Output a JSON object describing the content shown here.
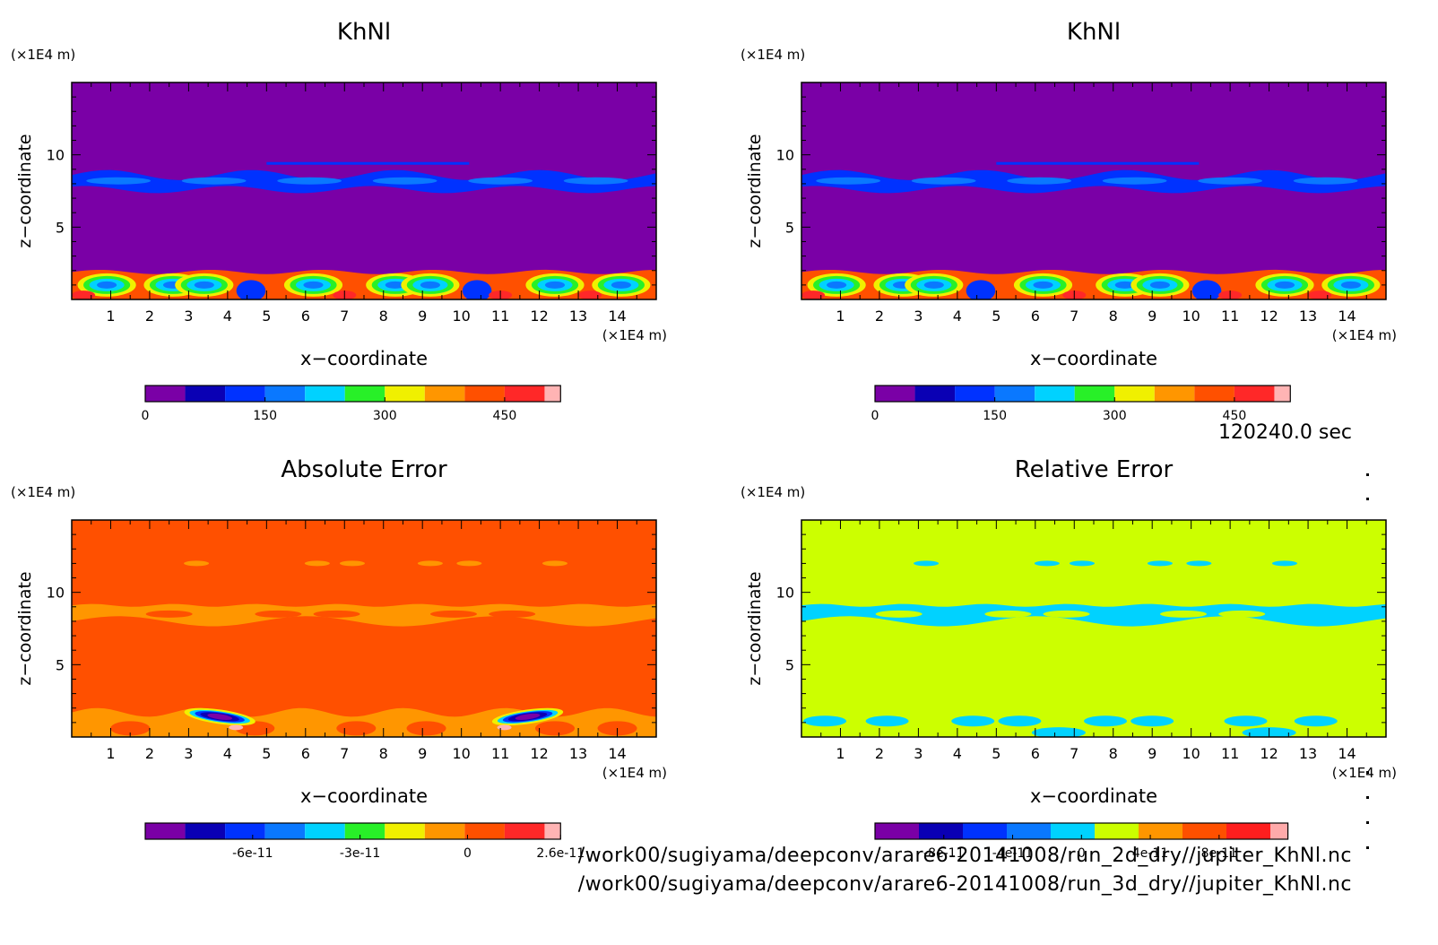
{
  "timestamp": "120240.0 sec",
  "files": [
    "/work00/sugiyama/deepconv/arare6-20141008/run_2d_dry//jupiter_KhNl.nc",
    "/work00/sugiyama/deepconv/arare6-20141008/run_3d_dry//jupiter_KhNl.nc"
  ],
  "chart_data": [
    {
      "type": "heatmap",
      "title": "KhNl",
      "xlabel": "x−coordinate",
      "ylabel": "z−coordinate",
      "x_unit": "(×1E4 m)",
      "z_unit": "(×1E4 m)",
      "xlim": [
        0,
        15
      ],
      "ylim": [
        0,
        15
      ],
      "xticks": [
        "1",
        "2",
        "3",
        "4",
        "5",
        "6",
        "7",
        "8",
        "9",
        "10",
        "11",
        "12",
        "13",
        "14"
      ],
      "yticks": [
        "5",
        "10"
      ],
      "colorbar": {
        "colors": [
          "#7a00a6",
          "#0a00b4",
          "#0032ff",
          "#0a78ff",
          "#00d2ff",
          "#28f028",
          "#f0f000",
          "#ff9600",
          "#ff5000",
          "#ff2828",
          "#ffb4b4"
        ],
        "ticks": [
          "0",
          "150",
          "300",
          "450"
        ],
        "range": [
          0,
          520
        ]
      },
      "background_level": 0
    },
    {
      "type": "heatmap",
      "title": "KhNl",
      "xlabel": "x−coordinate",
      "ylabel": "z−coordinate",
      "x_unit": "(×1E4 m)",
      "z_unit": "(×1E4 m)",
      "xlim": [
        0,
        15
      ],
      "ylim": [
        0,
        15
      ],
      "xticks": [
        "1",
        "2",
        "3",
        "4",
        "5",
        "6",
        "7",
        "8",
        "9",
        "10",
        "11",
        "12",
        "13",
        "14"
      ],
      "yticks": [
        "5",
        "10"
      ],
      "colorbar": {
        "colors": [
          "#7a00a6",
          "#0a00b4",
          "#0032ff",
          "#0a78ff",
          "#00d2ff",
          "#28f028",
          "#f0f000",
          "#ff9600",
          "#ff5000",
          "#ff2828",
          "#ffb4b4"
        ],
        "ticks": [
          "0",
          "150",
          "300",
          "450"
        ],
        "range": [
          0,
          520
        ]
      },
      "background_level": 0
    },
    {
      "type": "heatmap",
      "title": "Absolute Error",
      "xlabel": "x−coordinate",
      "ylabel": "z−coordinate",
      "x_unit": "(×1E4 m)",
      "z_unit": "(×1E4 m)",
      "xlim": [
        0,
        15
      ],
      "ylim": [
        0,
        15
      ],
      "xticks": [
        "1",
        "2",
        "3",
        "4",
        "5",
        "6",
        "7",
        "8",
        "9",
        "10",
        "11",
        "12",
        "13",
        "14"
      ],
      "yticks": [
        "5",
        "10"
      ],
      "colorbar": {
        "colors": [
          "#7a00a6",
          "#0a00b4",
          "#0032ff",
          "#0a78ff",
          "#00d2ff",
          "#28f028",
          "#f0f000",
          "#ff9600",
          "#ff5000",
          "#ff2828",
          "#ffb4b4"
        ],
        "ticks": [
          "-6e-11",
          "-3e-11",
          "0",
          "2.6e-11"
        ],
        "range": [
          -9e-11,
          2.6e-11
        ]
      },
      "background_level": 0
    },
    {
      "type": "heatmap",
      "title": "Relative Error",
      "xlabel": "x−coordinate",
      "ylabel": "z−coordinate",
      "x_unit": "(×1E4 m)",
      "z_unit": "(×1E4 m)",
      "xlim": [
        0,
        15
      ],
      "ylim": [
        0,
        15
      ],
      "xticks": [
        "1",
        "2",
        "3",
        "4",
        "5",
        "6",
        "7",
        "8",
        "9",
        "10",
        "11",
        "12",
        "13",
        "14"
      ],
      "yticks": [
        "5",
        "10"
      ],
      "colorbar": {
        "colors": [
          "#7a00a6",
          "#0a00b4",
          "#0032ff",
          "#0a78ff",
          "#00d2ff",
          "#ccff00",
          "#ff9600",
          "#ff5000",
          "#ff1e1e",
          "#ffaaaa"
        ],
        "ticks": [
          "-8e-11",
          "-4e-11",
          "0",
          "4e-11",
          "8e-11"
        ],
        "range": [
          -1.2e-10,
          1.2e-10
        ]
      },
      "background_level": 0
    }
  ]
}
